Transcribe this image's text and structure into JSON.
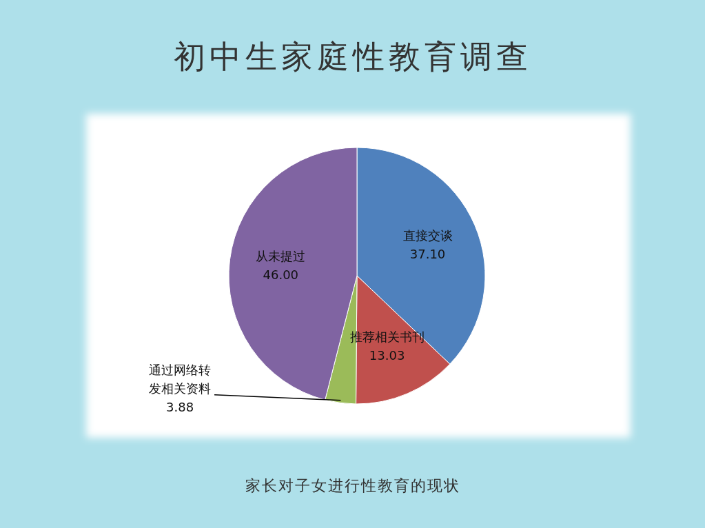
{
  "chart_data": {
    "type": "pie",
    "title": "初中生家庭性教育调查",
    "categories": [
      "直接交谈",
      "推荐相关书刊",
      "通过网络转发相关资料",
      "从未提过"
    ],
    "values": [
      37.1,
      13.03,
      3.88,
      46.0
    ],
    "value_labels": [
      "37.10",
      "13.03",
      "3.88",
      "46.00"
    ],
    "colors": [
      "#4f81bd",
      "#c0504d",
      "#9bbb59",
      "#8064a2"
    ],
    "annotations": [
      "家长对子女进行性教育的现状"
    ]
  }
}
